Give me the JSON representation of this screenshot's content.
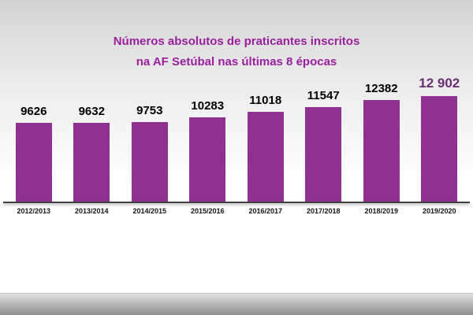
{
  "colors": {
    "bar": "#8e3191",
    "title": "#9a1f9e",
    "last_label": "#6b2d75",
    "baseline": "#3f3f3f"
  },
  "chart_data": {
    "type": "bar",
    "title": "Números absolutos de praticantes inscritos na AF Setúbal nas últimas 8 épocas",
    "title_line1": "Números absolutos de praticantes inscritos",
    "title_line2": "na AF Setúbal nas últimas 8 épocas",
    "categories": [
      "2012/2013",
      "2013/2014",
      "2014/2015",
      "2015/2016",
      "2016/2017",
      "2017/2018",
      "2018/2019",
      "2019/2020"
    ],
    "values": [
      9626,
      9632,
      9753,
      10283,
      11018,
      11547,
      12382,
      12902
    ],
    "value_labels": [
      "9626",
      "9632",
      "9753",
      "10283",
      "11018",
      "11547",
      "12382",
      "12 902"
    ],
    "xlabel": "",
    "ylabel": "",
    "ylim": [
      0,
      12902
    ],
    "grid": false,
    "legend": "none",
    "data_labels_position": "above-bars",
    "highlighted_last_value": true
  }
}
